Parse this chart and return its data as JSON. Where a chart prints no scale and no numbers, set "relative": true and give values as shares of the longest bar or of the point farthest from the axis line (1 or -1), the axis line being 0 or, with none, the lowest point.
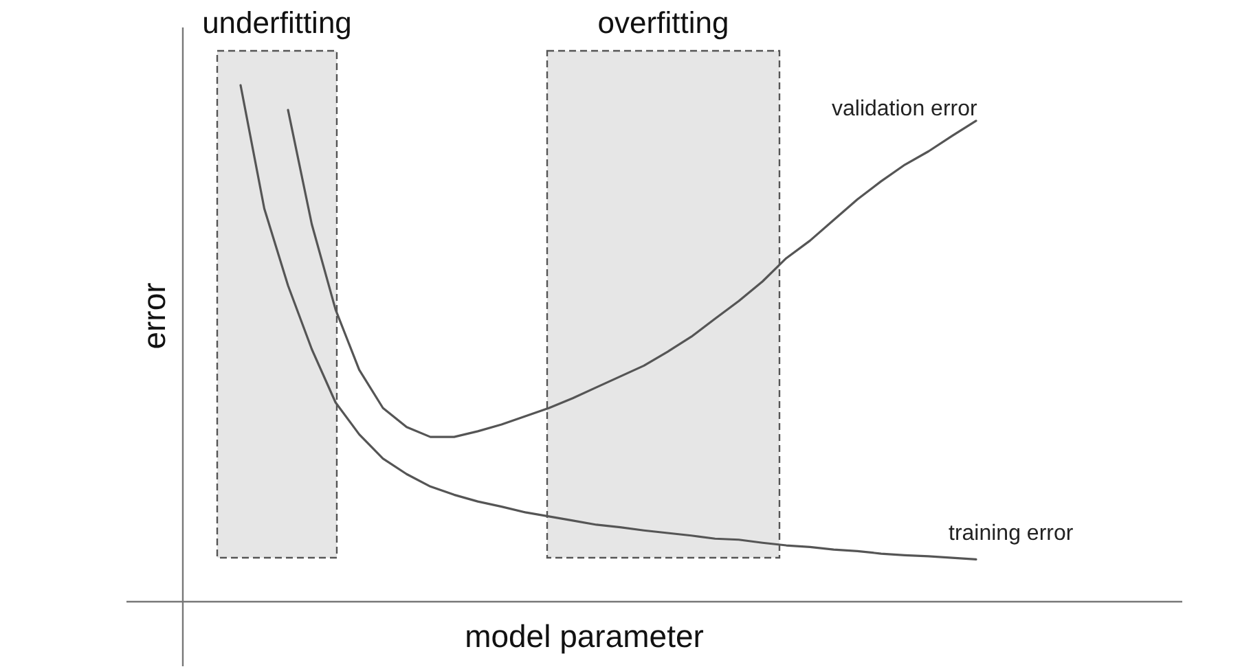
{
  "chart_data": {
    "type": "line",
    "relative": true,
    "xlabel": "model parameter",
    "ylabel": "error",
    "marker": "none",
    "line_style": "solid",
    "annotations": [
      "underfitting",
      "overfitting"
    ],
    "categories": [
      null,
      null,
      null,
      null,
      null,
      null,
      null,
      null,
      null,
      null,
      null,
      null,
      null,
      null,
      null,
      null,
      null,
      null,
      null,
      null,
      null,
      null,
      null,
      null,
      null,
      null,
      null,
      null,
      null,
      null,
      null,
      null
    ],
    "series": [
      {
        "name": "training error",
        "color": "#555555",
        "values": [
          1.0,
          0.761,
          0.612,
          0.489,
          0.386,
          0.324,
          0.277,
          0.247,
          0.223,
          0.207,
          0.194,
          0.184,
          0.173,
          0.165,
          0.157,
          0.149,
          0.144,
          0.138,
          0.133,
          0.128,
          0.122,
          0.12,
          0.114,
          0.109,
          0.106,
          0.101,
          0.098,
          0.093,
          0.09,
          0.088,
          0.085,
          0.082
        ]
      },
      {
        "name": "validation error",
        "color": "#555555",
        "values": [
          null,
          null,
          0.952,
          0.731,
          0.566,
          0.449,
          0.375,
          0.338,
          0.319,
          0.319,
          0.33,
          0.343,
          0.359,
          0.375,
          0.394,
          0.415,
          0.436,
          0.457,
          0.484,
          0.513,
          0.548,
          0.582,
          0.62,
          0.665,
          0.699,
          0.739,
          0.779,
          0.814,
          0.846,
          0.872,
          0.902,
          0.931
        ]
      }
    ]
  }
}
